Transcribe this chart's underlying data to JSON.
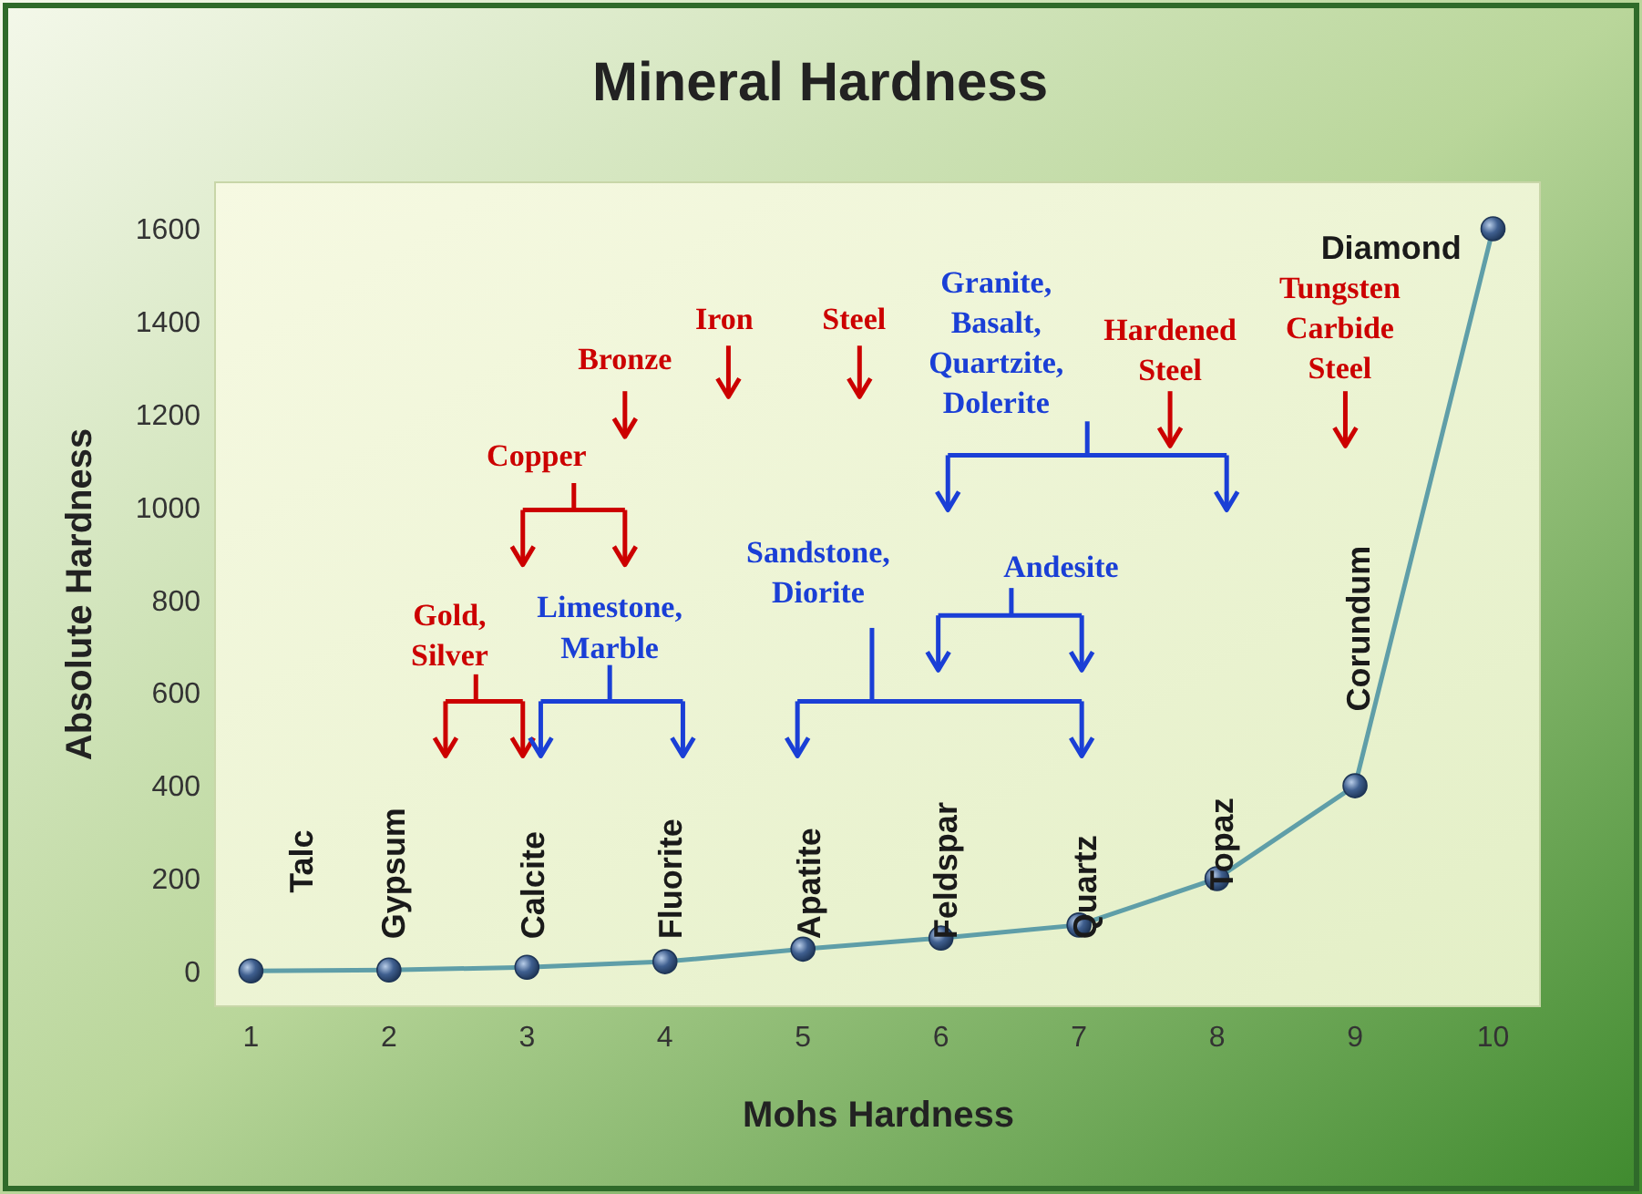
{
  "chart_data": {
    "type": "line",
    "title": "Mineral Hardness",
    "xlabel": "Mohs Hardness",
    "ylabel": "Absolute Hardness",
    "x": [
      1,
      2,
      3,
      4,
      5,
      6,
      7,
      8,
      9,
      10
    ],
    "series": [
      {
        "color": "#5f9ea8",
        "values": [
          1,
          3,
          9,
          21,
          48,
          72,
          100,
          200,
          400,
          1600
        ]
      }
    ],
    "xlim": [
      0.74,
      10.34
    ],
    "ylim": [
      -75,
      1700
    ],
    "xticks": [
      1,
      2,
      3,
      4,
      5,
      6,
      7,
      8,
      9,
      10
    ],
    "yticks": [
      0,
      200,
      400,
      600,
      800,
      1000,
      1200,
      1400,
      1600
    ],
    "grid": false,
    "marker": "circle",
    "line_style": "solid",
    "annotations": [
      "Talc",
      "Gypsum",
      "Calcite",
      "Fluorite",
      "Apatite",
      "Feldspar",
      "Quartz",
      "Topaz",
      "Corundum",
      "Diamond",
      "Gold, Silver",
      "Copper",
      "Bronze",
      "Iron",
      "Steel",
      "Hardened Steel",
      "Tungsten Carbide Steel",
      "Limestone, Marble",
      "Sandstone, Diorite",
      "Andesite",
      "Granite, Basalt, Quartzite, Dolerite"
    ]
  }
}
